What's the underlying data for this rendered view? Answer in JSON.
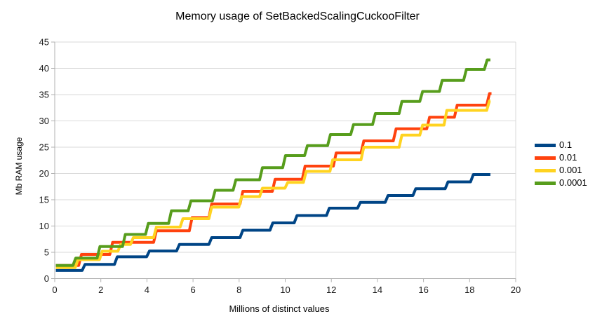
{
  "title": "Memory usage of SetBackedScalingCuckooFilter",
  "chart_data": {
    "type": "line",
    "variant": "step",
    "title": "Memory usage of SetBackedScalingCuckooFilter",
    "xlabel": "Millions of distinct values",
    "ylabel": "Mb RAM usage",
    "xlim": [
      0,
      20
    ],
    "ylim": [
      0,
      45
    ],
    "x_ticks": [
      0,
      2,
      4,
      6,
      8,
      10,
      12,
      14,
      16,
      18,
      20
    ],
    "y_ticks": [
      0,
      5,
      10,
      15,
      20,
      25,
      30,
      35,
      40,
      45
    ],
    "grid": "horizontal",
    "legend_position": "right",
    "grid_color": "#d9d9d9",
    "axis_color": "#b0b0b0",
    "text_color": "#1a1a1a",
    "series": [
      {
        "name": "0.1",
        "color": "#004586",
        "x_end": 18.9,
        "points": [
          [
            0.05,
            1.55
          ],
          [
            1.25,
            2.7
          ],
          [
            2.65,
            4.15
          ],
          [
            4.05,
            5.25
          ],
          [
            5.35,
            6.5
          ],
          [
            6.75,
            7.8
          ],
          [
            8.1,
            9.2
          ],
          [
            9.4,
            10.6
          ],
          [
            10.45,
            12.0
          ],
          [
            11.85,
            13.4
          ],
          [
            13.2,
            14.5
          ],
          [
            14.4,
            15.8
          ],
          [
            15.6,
            17.1
          ],
          [
            17.0,
            18.4
          ],
          [
            18.1,
            19.8
          ]
        ]
      },
      {
        "name": "0.01",
        "color": "#ff420e",
        "x_end": 18.95,
        "points": [
          [
            0.05,
            2.5
          ],
          [
            1.1,
            4.6
          ],
          [
            2.45,
            6.9
          ],
          [
            4.35,
            9.1
          ],
          [
            5.9,
            11.6
          ],
          [
            6.75,
            14.2
          ],
          [
            8.1,
            16.6
          ],
          [
            9.5,
            18.9
          ],
          [
            10.8,
            21.4
          ],
          [
            12.15,
            23.9
          ],
          [
            13.35,
            26.2
          ],
          [
            14.75,
            28.5
          ],
          [
            16.2,
            30.7
          ],
          [
            17.4,
            33.0
          ],
          [
            18.8,
            35.2
          ]
        ]
      },
      {
        "name": "0.001",
        "color": "#ffd320",
        "x_end": 18.9,
        "points": [
          [
            0.05,
            2.1
          ],
          [
            0.95,
            3.6
          ],
          [
            2.0,
            5.2
          ],
          [
            2.8,
            6.5
          ],
          [
            3.35,
            7.8
          ],
          [
            4.35,
            9.8
          ],
          [
            5.5,
            11.4
          ],
          [
            6.75,
            13.6
          ],
          [
            8.05,
            15.6
          ],
          [
            8.95,
            17.2
          ],
          [
            10.05,
            18.3
          ],
          [
            10.85,
            20.4
          ],
          [
            12.0,
            22.6
          ],
          [
            13.35,
            25.0
          ],
          [
            15.0,
            27.3
          ],
          [
            15.9,
            29.2
          ],
          [
            16.95,
            32.0
          ],
          [
            18.8,
            33.8
          ]
        ]
      },
      {
        "name": "0.0001",
        "color": "#579d1c",
        "x_end": 18.9,
        "points": [
          [
            0.05,
            2.5
          ],
          [
            0.85,
            3.9
          ],
          [
            1.9,
            6.1
          ],
          [
            3.0,
            8.4
          ],
          [
            4.0,
            10.5
          ],
          [
            5.0,
            12.9
          ],
          [
            5.85,
            14.8
          ],
          [
            6.9,
            16.8
          ],
          [
            7.8,
            18.8
          ],
          [
            8.95,
            21.1
          ],
          [
            9.95,
            23.4
          ],
          [
            10.9,
            25.3
          ],
          [
            11.9,
            27.4
          ],
          [
            12.9,
            29.3
          ],
          [
            13.85,
            31.4
          ],
          [
            15.0,
            33.7
          ],
          [
            15.9,
            35.6
          ],
          [
            16.75,
            37.7
          ],
          [
            17.8,
            39.8
          ],
          [
            18.7,
            41.6
          ]
        ]
      }
    ]
  }
}
